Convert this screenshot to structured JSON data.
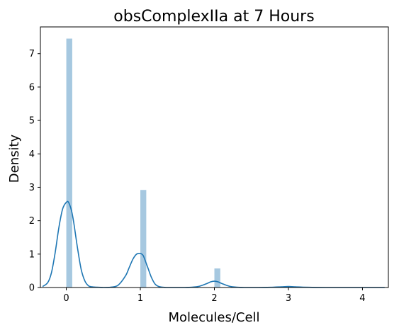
{
  "chart_data": {
    "type": "bar",
    "title": "obsComplexIIa at 7 Hours",
    "xlabel": "Molecules/Cell",
    "ylabel": "Density",
    "xlim": [
      -0.35,
      4.35
    ],
    "ylim": [
      0,
      7.8
    ],
    "xticks": [
      0,
      1,
      2,
      3,
      4
    ],
    "yticks": [
      0,
      1,
      2,
      3,
      4,
      5,
      6,
      7
    ],
    "grid": false,
    "legend": "none",
    "histogram": {
      "bar_width": 0.08,
      "color": "#a6c8e0",
      "bars": [
        {
          "x_start": 0.0,
          "value": 7.45
        },
        {
          "x_start": 1.0,
          "value": 2.92
        },
        {
          "x_start": 2.0,
          "value": 0.57
        }
      ]
    },
    "kde": {
      "color": "#1f77b4",
      "x": [
        -0.32,
        -0.25,
        -0.2,
        -0.15,
        -0.1,
        -0.05,
        0.0,
        0.03,
        0.07,
        0.1,
        0.15,
        0.2,
        0.25,
        0.3,
        0.35,
        0.4,
        0.5,
        0.6,
        0.7,
        0.8,
        0.85,
        0.9,
        0.95,
        1.0,
        1.03,
        1.05,
        1.1,
        1.15,
        1.2,
        1.25,
        1.3,
        1.35,
        1.4,
        1.5,
        1.6,
        1.7,
        1.8,
        1.9,
        1.95,
        2.0,
        2.05,
        2.1,
        2.2,
        2.3,
        2.4,
        2.6,
        2.8,
        2.9,
        3.0,
        3.1,
        3.2,
        3.5,
        4.0,
        4.3
      ],
      "y": [
        0.03,
        0.15,
        0.45,
        1.05,
        1.8,
        2.35,
        2.55,
        2.55,
        2.3,
        1.95,
        1.2,
        0.55,
        0.2,
        0.05,
        0.02,
        0.01,
        0.0,
        0.01,
        0.07,
        0.35,
        0.6,
        0.85,
        1.0,
        1.02,
        0.98,
        0.9,
        0.6,
        0.3,
        0.1,
        0.03,
        0.01,
        0.0,
        0.0,
        0.0,
        0.0,
        0.01,
        0.04,
        0.12,
        0.17,
        0.19,
        0.17,
        0.12,
        0.04,
        0.01,
        0.0,
        0.0,
        0.01,
        0.02,
        0.03,
        0.02,
        0.01,
        0.0,
        0.0,
        0.0
      ]
    }
  }
}
